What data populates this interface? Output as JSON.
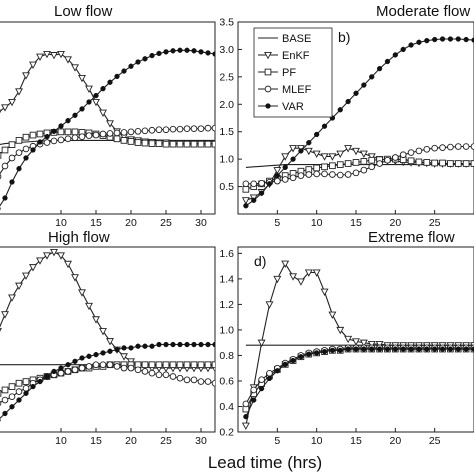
{
  "figure": {
    "xlabel": "Lead time (hrs)"
  },
  "legend": {
    "panel": 1,
    "entries": [
      {
        "name": "BASE",
        "marker": "none"
      },
      {
        "name": "EnKF",
        "marker": "tri"
      },
      {
        "name": "PF",
        "marker": "square"
      },
      {
        "name": "MLEF",
        "marker": "circle"
      },
      {
        "name": "VAR",
        "marker": "dot"
      }
    ]
  },
  "chart_data": [
    {
      "type": "line",
      "title": "Low flow",
      "panel_label": "",
      "xlim": [
        1,
        32
      ],
      "ylim": [
        0,
        3.6
      ],
      "xticks": [
        10,
        15,
        20,
        25,
        30
      ],
      "yticks": [],
      "x": [
        1,
        2,
        3,
        4,
        5,
        6,
        7,
        8,
        9,
        10,
        11,
        12,
        13,
        14,
        15,
        16,
        17,
        18,
        19,
        20,
        21,
        22,
        23,
        24,
        25,
        26,
        27,
        28,
        29,
        30,
        31,
        32
      ],
      "series": [
        {
          "name": "BASE",
          "marker": "none",
          "values": [
            1.3,
            1.32,
            1.33,
            1.34,
            1.35,
            1.36,
            1.37,
            1.37,
            1.38,
            1.38,
            1.38,
            1.38,
            1.38,
            1.38,
            1.38,
            1.38,
            1.38,
            1.38,
            1.38,
            1.38,
            1.38,
            1.38,
            1.38,
            1.38,
            1.38,
            1.38,
            1.38,
            1.38,
            1.38,
            1.38,
            1.38,
            1.38
          ]
        },
        {
          "name": "EnKF",
          "marker": "tri",
          "values": [
            1.9,
            2.0,
            2.1,
            2.3,
            2.6,
            2.8,
            2.95,
            3.0,
            2.98,
            3.0,
            2.9,
            2.75,
            2.55,
            2.35,
            2.1,
            1.9,
            1.7,
            1.55,
            1.45,
            1.4,
            1.38,
            1.36,
            1.35,
            1.34,
            1.34,
            1.33,
            1.33,
            1.32,
            1.32,
            1.32,
            1.32,
            1.32
          ]
        },
        {
          "name": "PF",
          "marker": "square",
          "values": [
            1.1,
            1.2,
            1.3,
            1.38,
            1.44,
            1.48,
            1.5,
            1.52,
            1.53,
            1.54,
            1.54,
            1.54,
            1.53,
            1.52,
            1.5,
            1.47,
            1.44,
            1.41,
            1.38,
            1.36,
            1.34,
            1.33,
            1.32,
            1.32,
            1.31,
            1.31,
            1.31,
            1.31,
            1.31,
            1.31,
            1.31,
            1.31
          ]
        },
        {
          "name": "MLEF",
          "marker": "circle",
          "values": [
            0.7,
            0.9,
            1.05,
            1.15,
            1.22,
            1.27,
            1.31,
            1.34,
            1.37,
            1.39,
            1.41,
            1.43,
            1.45,
            1.47,
            1.48,
            1.5,
            1.51,
            1.52,
            1.53,
            1.54,
            1.55,
            1.56,
            1.57,
            1.58,
            1.58,
            1.59,
            1.59,
            1.6,
            1.6,
            1.6,
            1.61,
            1.61
          ]
        },
        {
          "name": "VAR",
          "marker": "dot",
          "values": [
            0.1,
            0.3,
            0.6,
            0.85,
            1.05,
            1.2,
            1.35,
            1.45,
            1.55,
            1.65,
            1.75,
            1.85,
            1.97,
            2.1,
            2.22,
            2.35,
            2.47,
            2.58,
            2.68,
            2.77,
            2.85,
            2.91,
            2.97,
            3.01,
            3.04,
            3.06,
            3.07,
            3.07,
            3.06,
            3.04,
            3.02,
            3.0
          ]
        }
      ]
    },
    {
      "type": "line",
      "title": "Moderate flow",
      "panel_label": "b)",
      "xlim": [
        0,
        30
      ],
      "ylim": [
        0,
        3.5
      ],
      "xticks": [
        5,
        10,
        15,
        20,
        25
      ],
      "yticks": [
        0.5,
        1.0,
        1.5,
        2.0,
        2.5,
        3.0,
        3.5
      ],
      "x": [
        1,
        2,
        3,
        4,
        5,
        6,
        7,
        8,
        9,
        10,
        11,
        12,
        13,
        14,
        15,
        16,
        17,
        18,
        19,
        20,
        21,
        22,
        23,
        24,
        25,
        26,
        27,
        28,
        29,
        30
      ],
      "series": [
        {
          "name": "BASE",
          "marker": "none",
          "values": [
            0.85,
            0.86,
            0.87,
            0.88,
            0.89,
            0.9,
            0.9,
            0.9,
            0.9,
            0.9,
            0.9,
            0.9,
            0.9,
            0.9,
            0.9,
            0.9,
            0.9,
            0.9,
            0.9,
            0.9,
            0.9,
            0.9,
            0.9,
            0.9,
            0.9,
            0.9,
            0.9,
            0.9,
            0.9,
            0.9
          ]
        },
        {
          "name": "EnKF",
          "marker": "tri",
          "values": [
            0.25,
            0.3,
            0.4,
            0.55,
            0.8,
            1.05,
            1.2,
            1.2,
            1.15,
            1.1,
            1.05,
            1.05,
            1.1,
            1.2,
            1.15,
            1.1,
            1.05,
            1.0,
            0.98,
            0.97,
            0.95,
            0.94,
            0.93,
            0.93,
            0.92,
            0.92,
            0.92,
            0.92,
            0.92,
            0.92
          ]
        },
        {
          "name": "PF",
          "marker": "square",
          "values": [
            0.45,
            0.5,
            0.55,
            0.6,
            0.65,
            0.7,
            0.74,
            0.78,
            0.81,
            0.84,
            0.86,
            0.88,
            0.9,
            0.92,
            0.94,
            0.96,
            0.98,
            0.99,
            1.0,
            1.0,
            0.99,
            0.97,
            0.95,
            0.94,
            0.93,
            0.93,
            0.92,
            0.92,
            0.92,
            0.92
          ]
        },
        {
          "name": "MLEF",
          "marker": "circle",
          "values": [
            0.55,
            0.55,
            0.56,
            0.58,
            0.6,
            0.63,
            0.66,
            0.7,
            0.72,
            0.73,
            0.73,
            0.72,
            0.71,
            0.72,
            0.75,
            0.8,
            0.86,
            0.92,
            0.98,
            1.03,
            1.08,
            1.12,
            1.15,
            1.18,
            1.2,
            1.21,
            1.22,
            1.23,
            1.23,
            1.23
          ]
        },
        {
          "name": "VAR",
          "marker": "dot",
          "values": [
            0.15,
            0.25,
            0.38,
            0.55,
            0.7,
            0.85,
            1.0,
            1.15,
            1.3,
            1.45,
            1.6,
            1.75,
            1.9,
            2.05,
            2.2,
            2.35,
            2.5,
            2.65,
            2.78,
            2.9,
            3.0,
            3.08,
            3.13,
            3.16,
            3.18,
            3.19,
            3.19,
            3.19,
            3.18,
            3.17
          ]
        }
      ]
    },
    {
      "type": "line",
      "title": "High flow",
      "panel_label": "",
      "xlim": [
        1,
        32
      ],
      "ylim": [
        0.55,
        1.65
      ],
      "xticks": [
        10,
        15,
        20,
        25,
        30
      ],
      "yticks": [],
      "x": [
        1,
        2,
        3,
        4,
        5,
        6,
        7,
        8,
        9,
        10,
        11,
        12,
        13,
        14,
        15,
        16,
        17,
        18,
        19,
        20,
        21,
        22,
        23,
        24,
        25,
        26,
        27,
        28,
        29,
        30,
        31,
        32
      ],
      "series": [
        {
          "name": "BASE",
          "marker": "none",
          "values": [
            0.95,
            0.95,
            0.95,
            0.95,
            0.95,
            0.95,
            0.95,
            0.95,
            0.95,
            0.95,
            0.95,
            0.95,
            0.95,
            0.95,
            0.95,
            0.95,
            0.95,
            0.95,
            0.95,
            0.95,
            0.95,
            0.95,
            0.95,
            0.95,
            0.95,
            0.95,
            0.95,
            0.95,
            0.95,
            0.95,
            0.95,
            0.95
          ]
        },
        {
          "name": "EnKF",
          "marker": "tri",
          "values": [
            1.15,
            1.25,
            1.35,
            1.42,
            1.48,
            1.53,
            1.57,
            1.6,
            1.62,
            1.6,
            1.55,
            1.47,
            1.38,
            1.3,
            1.22,
            1.15,
            1.09,
            1.04,
            1.0,
            0.97,
            0.95,
            0.94,
            0.93,
            0.93,
            0.93,
            0.93,
            0.93,
            0.93,
            0.93,
            0.93,
            0.93,
            0.93
          ]
        },
        {
          "name": "PF",
          "marker": "square",
          "values": [
            0.78,
            0.8,
            0.82,
            0.84,
            0.85,
            0.86,
            0.87,
            0.88,
            0.89,
            0.9,
            0.91,
            0.92,
            0.93,
            0.93,
            0.94,
            0.94,
            0.95,
            0.95,
            0.95,
            0.95,
            0.95,
            0.95,
            0.95,
            0.95,
            0.95,
            0.95,
            0.95,
            0.95,
            0.95,
            0.95,
            0.95,
            0.95
          ]
        },
        {
          "name": "MLEF",
          "marker": "circle",
          "values": [
            0.72,
            0.74,
            0.76,
            0.79,
            0.81,
            0.84,
            0.86,
            0.88,
            0.89,
            0.9,
            0.91,
            0.92,
            0.93,
            0.94,
            0.95,
            0.95,
            0.95,
            0.94,
            0.93,
            0.93,
            0.92,
            0.91,
            0.9,
            0.89,
            0.89,
            0.88,
            0.87,
            0.86,
            0.86,
            0.85,
            0.85,
            0.84
          ]
        },
        {
          "name": "VAR",
          "marker": "dot",
          "values": [
            0.62,
            0.66,
            0.7,
            0.74,
            0.78,
            0.82,
            0.85,
            0.88,
            0.91,
            0.93,
            0.95,
            0.97,
            0.99,
            1.0,
            1.01,
            1.02,
            1.03,
            1.04,
            1.05,
            1.05,
            1.06,
            1.06,
            1.06,
            1.07,
            1.07,
            1.07,
            1.07,
            1.07,
            1.07,
            1.07,
            1.07,
            1.07
          ]
        }
      ]
    },
    {
      "type": "line",
      "title": "Extreme flow",
      "panel_label": "d)",
      "xlim": [
        0,
        30
      ],
      "ylim": [
        0.2,
        1.65
      ],
      "xticks": [
        5,
        10,
        15,
        20,
        25
      ],
      "yticks": [
        0.2,
        0.4,
        0.6,
        0.8,
        1.0,
        1.2,
        1.4,
        1.6
      ],
      "x": [
        1,
        2,
        3,
        4,
        5,
        6,
        7,
        8,
        9,
        10,
        11,
        12,
        13,
        14,
        15,
        16,
        17,
        18,
        19,
        20,
        21,
        22,
        23,
        24,
        25,
        26,
        27,
        28,
        29,
        30
      ],
      "series": [
        {
          "name": "BASE",
          "marker": "none",
          "values": [
            0.88,
            0.88,
            0.88,
            0.88,
            0.88,
            0.88,
            0.88,
            0.88,
            0.88,
            0.88,
            0.88,
            0.88,
            0.88,
            0.88,
            0.88,
            0.88,
            0.88,
            0.88,
            0.88,
            0.88,
            0.88,
            0.88,
            0.88,
            0.88,
            0.88,
            0.88,
            0.88,
            0.88,
            0.88,
            0.88
          ]
        },
        {
          "name": "EnKF",
          "marker": "tri",
          "values": [
            0.25,
            0.55,
            0.9,
            1.2,
            1.4,
            1.52,
            1.42,
            1.38,
            1.45,
            1.45,
            1.3,
            1.12,
            1.0,
            0.93,
            0.91,
            0.9,
            0.89,
            0.89,
            0.88,
            0.88,
            0.88,
            0.88,
            0.88,
            0.88,
            0.88,
            0.88,
            0.88,
            0.88,
            0.88,
            0.88
          ]
        },
        {
          "name": "PF",
          "marker": "square",
          "values": [
            0.38,
            0.5,
            0.58,
            0.64,
            0.69,
            0.73,
            0.76,
            0.79,
            0.81,
            0.82,
            0.83,
            0.84,
            0.84,
            0.85,
            0.85,
            0.85,
            0.85,
            0.85,
            0.85,
            0.85,
            0.85,
            0.85,
            0.85,
            0.85,
            0.85,
            0.85,
            0.85,
            0.85,
            0.85,
            0.85
          ]
        },
        {
          "name": "MLEF",
          "marker": "circle",
          "values": [
            0.42,
            0.53,
            0.61,
            0.66,
            0.7,
            0.74,
            0.77,
            0.8,
            0.82,
            0.83,
            0.84,
            0.85,
            0.85,
            0.86,
            0.86,
            0.86,
            0.86,
            0.86,
            0.86,
            0.86,
            0.86,
            0.86,
            0.86,
            0.86,
            0.86,
            0.86,
            0.86,
            0.86,
            0.86,
            0.86
          ]
        },
        {
          "name": "VAR",
          "marker": "dot",
          "values": [
            0.32,
            0.45,
            0.54,
            0.62,
            0.68,
            0.73,
            0.76,
            0.79,
            0.81,
            0.82,
            0.83,
            0.84,
            0.84,
            0.85,
            0.85,
            0.85,
            0.85,
            0.85,
            0.85,
            0.85,
            0.85,
            0.85,
            0.85,
            0.85,
            0.85,
            0.85,
            0.85,
            0.85,
            0.85,
            0.85
          ]
        }
      ]
    }
  ]
}
